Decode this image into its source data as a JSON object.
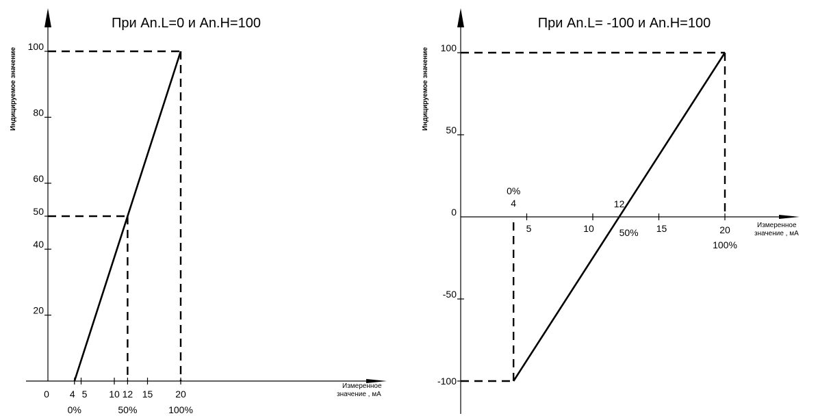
{
  "chart_data": [
    {
      "type": "line",
      "title": "При An.L=0 и An.H=100",
      "ylabel": "Индицируемое значение",
      "xlabel_lines": [
        "Измеренное",
        "значение , мА"
      ],
      "xlim": [
        0,
        24
      ],
      "ylim": [
        0,
        110
      ],
      "x_ticks": [
        0,
        4,
        5,
        10,
        12,
        15,
        20
      ],
      "y_ticks": [
        20,
        40,
        50,
        60,
        80,
        100
      ],
      "x": [
        4,
        20
      ],
      "y": [
        0,
        100
      ],
      "guides": [
        {
          "x": 12,
          "y": 50
        },
        {
          "x": 20,
          "y": 100
        }
      ],
      "percent_labels": [
        {
          "x": 4,
          "text": "0%"
        },
        {
          "x": 12,
          "text": "50%"
        },
        {
          "x": 20,
          "text": "100%"
        }
      ]
    },
    {
      "type": "line",
      "title": "При An.L= -100 и An.H=100",
      "ylabel": "Индицируемое значение",
      "xlabel_lines": [
        "Измеренное",
        "значение , мА"
      ],
      "xlim": [
        0,
        24
      ],
      "ylim": [
        -110,
        110
      ],
      "x_ticks": [
        5,
        10,
        15,
        20
      ],
      "y_ticks": [
        -100,
        -50,
        0,
        50,
        100
      ],
      "x": [
        4,
        20
      ],
      "y": [
        -100,
        100
      ],
      "guides": [
        {
          "x": 4,
          "y": -100
        },
        {
          "x": 20,
          "y": 100
        }
      ],
      "annotations": [
        {
          "text": "0%",
          "x": 4
        },
        {
          "text": "4",
          "x": 4
        },
        {
          "text": "12",
          "x": 12
        },
        {
          "text": "50%",
          "x": 12
        },
        {
          "text": "100%",
          "x": 20
        }
      ]
    }
  ]
}
